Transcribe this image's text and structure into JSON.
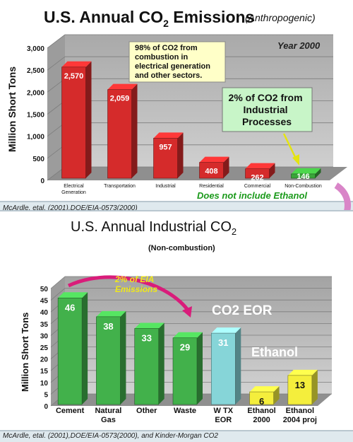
{
  "top": {
    "title_main": "U.S. Annual CO",
    "title_sub": "2",
    "title_tail": " Emissions",
    "title_note": "(Anthropogenic)",
    "year_label": "Year 2000",
    "note_box_lines": [
      "98% of CO2 from",
      "combustion in",
      "electrical generation",
      "and other sectors."
    ],
    "callout_lines": [
      "2% of CO2 from",
      "Industrial",
      "Processes"
    ],
    "ethanol_note": "Does not include Ethanol",
    "source": "McArdle, etal. (2001),DOE/EIA-0573(2000)",
    "colors": {
      "bar": "#d52b2b",
      "bar_dark": "#8e1414",
      "bar_top": "#f07070",
      "highlight": "#3aa53a",
      "note_bg": "#ffffc8",
      "callout_bg": "#c8f5c8"
    }
  },
  "bottom": {
    "title_main": "U.S. Annual Industrial CO",
    "title_sub": "2",
    "subtitle": "(Non-combustion)",
    "arrow_label_lines": [
      "2% of EIA",
      "Emissions"
    ],
    "eor_label": "CO2 EOR",
    "ethanol_label": "Ethanol",
    "source": "McArdle, etal. (2001),DOE/EIA-0573(2000), and Kinder-Morgan CO2",
    "colors": {
      "green": "#42b14b",
      "cyan": "#86d5d8",
      "yellow": "#f4ee3c",
      "arrow": "#d91c7a"
    }
  },
  "chart_data": [
    {
      "type": "bar",
      "title": "U.S. Annual CO2 Emissions (Anthropogenic)",
      "ylabel": "Million Short Tons",
      "ylim": [
        0,
        3000
      ],
      "yticks": [
        "0",
        "500",
        "1,000",
        "1,500",
        "2,000",
        "2,500",
        "3,000"
      ],
      "categories": [
        [
          "Electrical",
          "Generation"
        ],
        [
          "Transportation"
        ],
        [
          "Industrial"
        ],
        [
          "Residential"
        ],
        [
          "Commercial"
        ],
        [
          "Non-Combustion"
        ]
      ],
      "values": [
        2570,
        2059,
        957,
        408,
        262,
        146
      ],
      "value_labels": [
        "2,570",
        "2,059",
        "957",
        "408",
        "262",
        "146"
      ],
      "grid": true
    },
    {
      "type": "bar",
      "title": "U.S. Annual Industrial CO2 (Non-combustion)",
      "ylabel": "Million Short Tons",
      "ylim": [
        0,
        50
      ],
      "yticks": [
        "0",
        "5",
        "10",
        "15",
        "20",
        "25",
        "30",
        "35",
        "40",
        "45",
        "50"
      ],
      "categories": [
        [
          "Cement"
        ],
        [
          "Natural",
          "Gas"
        ],
        [
          "Other"
        ],
        [
          "Waste"
        ],
        [
          "W TX",
          "EOR"
        ],
        [
          "Ethanol",
          "2000"
        ],
        [
          "Ethanol",
          "2004 proj"
        ]
      ],
      "values": [
        46,
        38,
        33,
        29,
        31,
        6,
        13
      ],
      "value_labels": [
        "46",
        "38",
        "33",
        "29",
        "31",
        "6",
        "13"
      ],
      "bar_colors": [
        "green",
        "green",
        "green",
        "green",
        "cyan",
        "yellow",
        "yellow"
      ],
      "grid": true
    }
  ]
}
